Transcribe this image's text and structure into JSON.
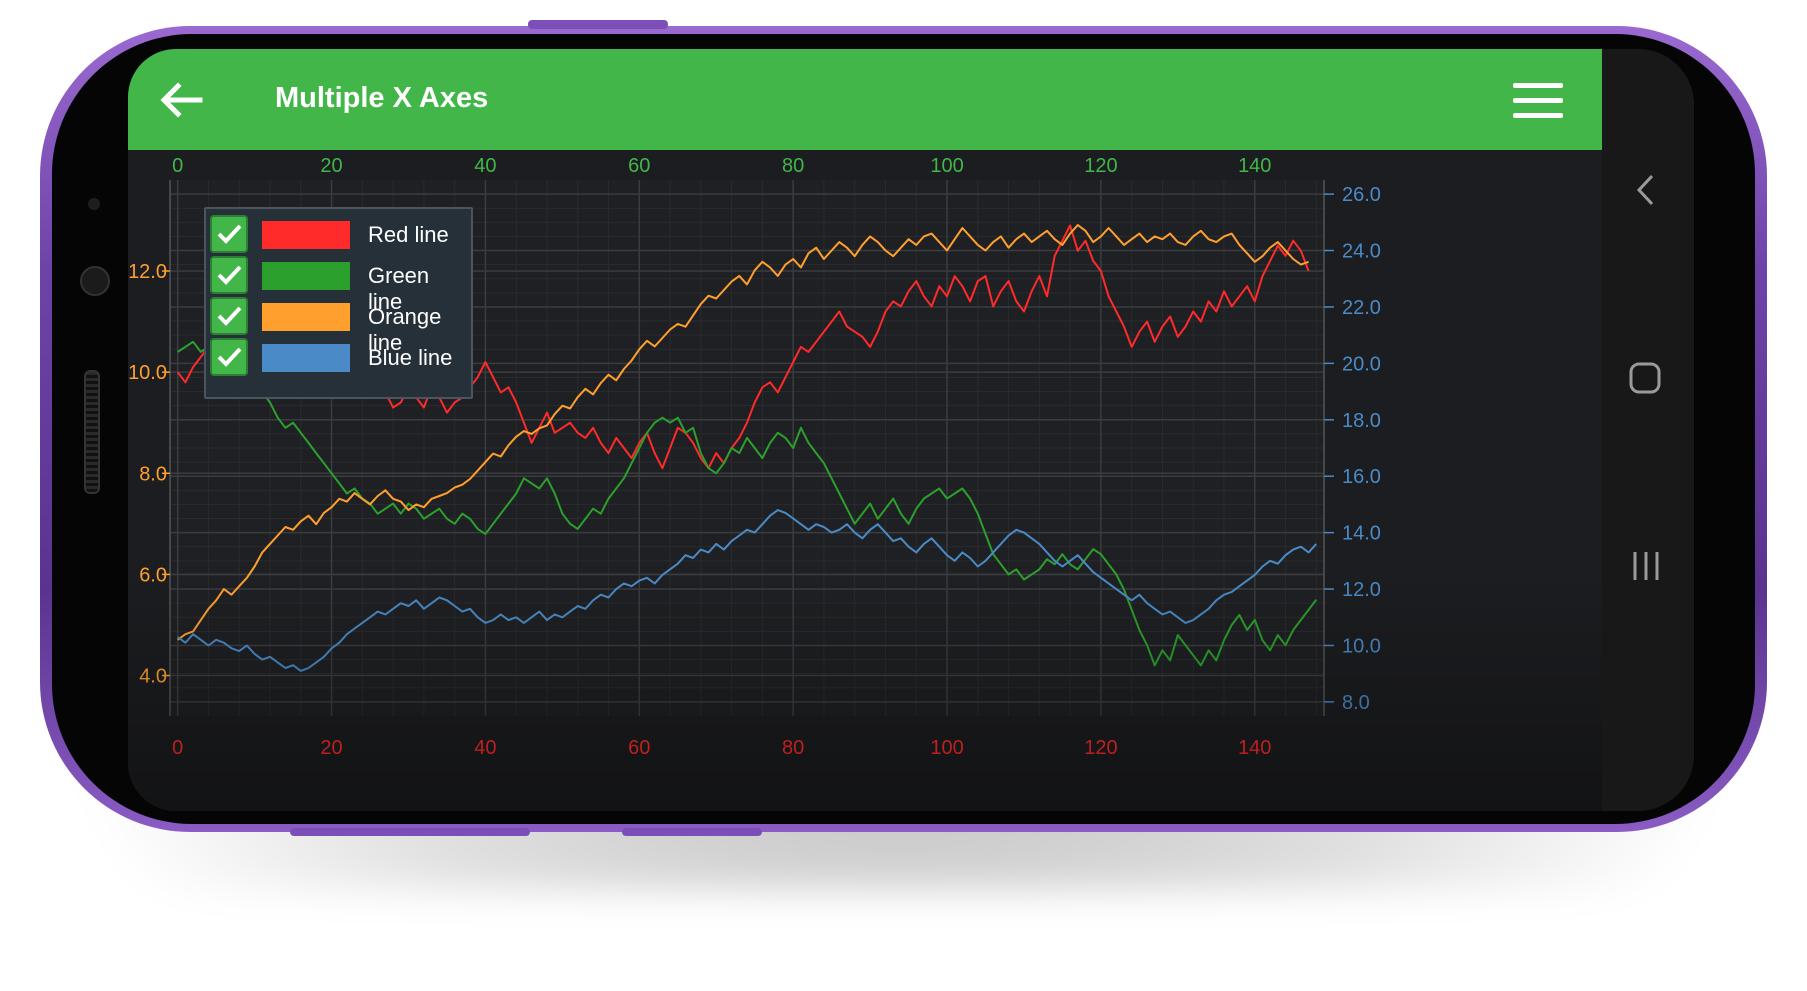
{
  "app": {
    "title": "Multiple X Axes",
    "back_icon": "arrow-left-icon",
    "menu_icon": "hamburger-menu-icon",
    "accent_color": "#42b649"
  },
  "system_nav": {
    "icons": [
      "chevron-left-icon",
      "rounded-square-home-icon",
      "recent-apps-icon"
    ]
  },
  "legend": {
    "items": [
      {
        "label": "Red line",
        "color": "#ff2a2a",
        "checked": true
      },
      {
        "label": "Green line",
        "color": "#2ca02c",
        "checked": true
      },
      {
        "label": "Orange line",
        "color": "#ff9f2e",
        "checked": true
      },
      {
        "label": "Blue line",
        "color": "#4a8ac6",
        "checked": true
      }
    ]
  },
  "chart_data": {
    "type": "line",
    "grid": true,
    "legend_position": "top-left",
    "axes": {
      "x_top": {
        "color": "#42b649",
        "ticks": [
          "0",
          "20",
          "40",
          "60",
          "80",
          "100",
          "120",
          "140"
        ],
        "range": [
          -1,
          149
        ]
      },
      "x_bottom": {
        "color": "#ff2a2a",
        "ticks": [
          "0",
          "20",
          "40",
          "60",
          "80",
          "100",
          "120",
          "140"
        ],
        "range": [
          -1,
          149
        ]
      },
      "y_left": {
        "color": "#ff9f2e",
        "ticks": [
          "4.0",
          "6.0",
          "8.0",
          "10.0",
          "12.0"
        ],
        "range": [
          3.2,
          13.8
        ]
      },
      "y_right": {
        "color": "#4a8ac6",
        "ticks": [
          "8.0",
          "10.0",
          "12.0",
          "14.0",
          "16.0",
          "18.0",
          "20.0",
          "22.0",
          "24.0",
          "26.0"
        ],
        "range": [
          7.5,
          26.5
        ]
      }
    },
    "series": [
      {
        "name": "Red line",
        "color": "#ff2a2a",
        "x_axis": "x_bottom",
        "y_axis": "y_left",
        "values": [
          10.0,
          9.8,
          10.1,
          10.3,
          10.5,
          10.4,
          10.2,
          10.4,
          10.1,
          10.3,
          10.6,
          10.5,
          10.3,
          10.7,
          10.4,
          10.2,
          10.0,
          9.8,
          10.0,
          10.3,
          10.5,
          10.6,
          10.4,
          10.5,
          10.3,
          10.2,
          10.0,
          9.6,
          9.3,
          9.4,
          9.7,
          9.5,
          9.3,
          9.7,
          9.5,
          9.2,
          9.4,
          9.5,
          9.7,
          9.9,
          10.2,
          9.9,
          9.6,
          9.7,
          9.4,
          9.0,
          8.6,
          8.9,
          9.2,
          8.8,
          8.9,
          9.0,
          8.8,
          8.7,
          8.9,
          8.6,
          8.4,
          8.7,
          8.5,
          8.3,
          8.6,
          8.8,
          8.4,
          8.1,
          8.5,
          8.9,
          8.8,
          8.6,
          8.3,
          8.1,
          8.4,
          8.2,
          8.5,
          8.7,
          9.0,
          9.4,
          9.7,
          9.8,
          9.6,
          9.9,
          10.2,
          10.5,
          10.4,
          10.6,
          10.8,
          11.0,
          11.2,
          10.9,
          10.8,
          10.7,
          10.5,
          10.8,
          11.2,
          11.4,
          11.3,
          11.6,
          11.8,
          11.5,
          11.3,
          11.7,
          11.5,
          11.9,
          11.7,
          11.4,
          11.8,
          11.9,
          11.3,
          11.6,
          11.8,
          11.4,
          11.2,
          11.6,
          11.9,
          11.5,
          12.3,
          12.6,
          12.9,
          12.4,
          12.6,
          12.2,
          12.0,
          11.5,
          11.2,
          10.9,
          10.5,
          10.8,
          11.0,
          10.6,
          10.9,
          11.1,
          10.7,
          10.9,
          11.2,
          11.0,
          11.4,
          11.2,
          11.6,
          11.3,
          11.5,
          11.7,
          11.4,
          11.9,
          12.2,
          12.5,
          12.3,
          12.6,
          12.4,
          12.0
        ]
      },
      {
        "name": "Green line",
        "color": "#2ca02c",
        "x_axis": "x_top",
        "y_axis": "y_left",
        "values": [
          10.4,
          10.5,
          10.6,
          10.4,
          10.5,
          10.3,
          10.2,
          10.4,
          10.1,
          10.0,
          9.8,
          9.6,
          9.4,
          9.1,
          8.9,
          9.0,
          8.8,
          8.6,
          8.4,
          8.2,
          8.0,
          7.8,
          7.6,
          7.7,
          7.5,
          7.4,
          7.2,
          7.3,
          7.4,
          7.2,
          7.4,
          7.3,
          7.1,
          7.2,
          7.3,
          7.1,
          7.0,
          7.2,
          7.1,
          6.9,
          6.8,
          7.0,
          7.2,
          7.4,
          7.6,
          7.9,
          7.8,
          7.7,
          7.9,
          7.6,
          7.2,
          7.0,
          6.9,
          7.1,
          7.3,
          7.2,
          7.5,
          7.7,
          7.9,
          8.2,
          8.5,
          8.8,
          9.0,
          9.1,
          9.0,
          9.1,
          8.8,
          8.9,
          8.4,
          8.1,
          8.0,
          8.2,
          8.5,
          8.4,
          8.7,
          8.5,
          8.3,
          8.6,
          8.8,
          8.7,
          8.5,
          8.9,
          8.6,
          8.4,
          8.2,
          7.9,
          7.6,
          7.3,
          7.0,
          7.2,
          7.4,
          7.1,
          7.3,
          7.5,
          7.2,
          7.0,
          7.3,
          7.5,
          7.6,
          7.7,
          7.5,
          7.6,
          7.7,
          7.5,
          7.2,
          6.8,
          6.4,
          6.2,
          6.0,
          6.1,
          5.9,
          6.0,
          6.1,
          6.3,
          6.2,
          6.4,
          6.2,
          6.1,
          6.3,
          6.5,
          6.4,
          6.2,
          6.0,
          5.7,
          5.3,
          4.9,
          4.6,
          4.2,
          4.5,
          4.3,
          4.8,
          4.6,
          4.4,
          4.2,
          4.5,
          4.3,
          4.7,
          5.0,
          5.2,
          4.9,
          5.1,
          4.7,
          4.5,
          4.8,
          4.6,
          4.9,
          5.1,
          5.3,
          5.5
        ]
      },
      {
        "name": "Orange line",
        "color": "#ff9f2e",
        "x_axis": "x_bottom",
        "y_axis": "y_right",
        "values": [
          10.2,
          10.4,
          10.5,
          10.9,
          11.3,
          11.6,
          12.0,
          11.8,
          12.1,
          12.4,
          12.8,
          13.3,
          13.6,
          13.9,
          14.2,
          14.1,
          14.4,
          14.6,
          14.3,
          14.7,
          14.9,
          15.2,
          15.1,
          15.4,
          15.2,
          15.0,
          15.3,
          15.5,
          15.2,
          15.1,
          14.8,
          15.0,
          14.9,
          15.2,
          15.3,
          15.4,
          15.6,
          15.7,
          15.9,
          16.2,
          16.5,
          16.8,
          16.7,
          17.1,
          17.4,
          17.6,
          17.5,
          17.7,
          17.8,
          18.2,
          18.5,
          18.4,
          18.8,
          19.1,
          18.9,
          19.3,
          19.6,
          19.4,
          19.8,
          20.1,
          20.5,
          20.8,
          20.6,
          20.9,
          21.2,
          21.4,
          21.3,
          21.7,
          22.1,
          22.4,
          22.3,
          22.6,
          22.9,
          23.1,
          22.8,
          23.3,
          23.6,
          23.4,
          23.1,
          23.5,
          23.7,
          23.4,
          23.9,
          24.1,
          23.7,
          24.0,
          24.3,
          24.1,
          23.8,
          24.2,
          24.5,
          24.3,
          24.0,
          23.8,
          24.1,
          24.4,
          24.2,
          24.5,
          24.6,
          24.3,
          24.0,
          24.4,
          24.8,
          24.5,
          24.2,
          24.0,
          24.3,
          24.5,
          24.1,
          24.4,
          24.6,
          24.3,
          24.5,
          24.7,
          24.4,
          24.2,
          24.6,
          24.9,
          24.7,
          24.3,
          24.5,
          24.8,
          24.5,
          24.2,
          24.4,
          24.6,
          24.3,
          24.5,
          24.4,
          24.6,
          24.3,
          24.2,
          24.5,
          24.7,
          24.4,
          24.3,
          24.5,
          24.6,
          24.2,
          23.9,
          23.6,
          23.8,
          24.1,
          24.3,
          24.0,
          23.7,
          23.5,
          23.6
        ]
      },
      {
        "name": "Blue line",
        "color": "#4a8ac6",
        "x_axis": "x_top",
        "y_axis": "y_right",
        "values": [
          10.3,
          10.1,
          10.4,
          10.2,
          10.0,
          10.2,
          10.1,
          9.9,
          9.8,
          10.0,
          9.7,
          9.5,
          9.6,
          9.4,
          9.2,
          9.3,
          9.1,
          9.2,
          9.4,
          9.6,
          9.9,
          10.1,
          10.4,
          10.6,
          10.8,
          11.0,
          11.2,
          11.1,
          11.3,
          11.5,
          11.4,
          11.6,
          11.3,
          11.5,
          11.7,
          11.6,
          11.4,
          11.2,
          11.3,
          11.0,
          10.8,
          10.9,
          11.1,
          10.9,
          11.0,
          10.8,
          11.0,
          11.2,
          10.9,
          11.1,
          11.0,
          11.2,
          11.4,
          11.3,
          11.6,
          11.8,
          11.7,
          12.0,
          12.2,
          12.1,
          12.3,
          12.4,
          12.2,
          12.5,
          12.7,
          12.9,
          13.2,
          13.1,
          13.4,
          13.3,
          13.6,
          13.4,
          13.7,
          13.9,
          14.1,
          14.0,
          14.3,
          14.6,
          14.8,
          14.7,
          14.5,
          14.3,
          14.1,
          14.3,
          14.2,
          14.0,
          14.1,
          14.3,
          14.0,
          13.8,
          14.1,
          14.3,
          14.0,
          13.7,
          13.8,
          13.5,
          13.3,
          13.6,
          13.8,
          13.5,
          13.2,
          13.0,
          13.3,
          13.1,
          12.8,
          13.0,
          13.3,
          13.6,
          13.9,
          14.1,
          14.0,
          13.8,
          13.6,
          13.3,
          13.0,
          12.8,
          13.0,
          13.2,
          12.9,
          12.6,
          12.4,
          12.2,
          12.0,
          11.8,
          11.6,
          11.8,
          11.5,
          11.3,
          11.1,
          11.2,
          11.0,
          10.8,
          10.9,
          11.1,
          11.3,
          11.6,
          11.8,
          11.9,
          12.1,
          12.3,
          12.5,
          12.8,
          13.0,
          12.9,
          13.2,
          13.4,
          13.5,
          13.3,
          13.6
        ]
      }
    ]
  }
}
